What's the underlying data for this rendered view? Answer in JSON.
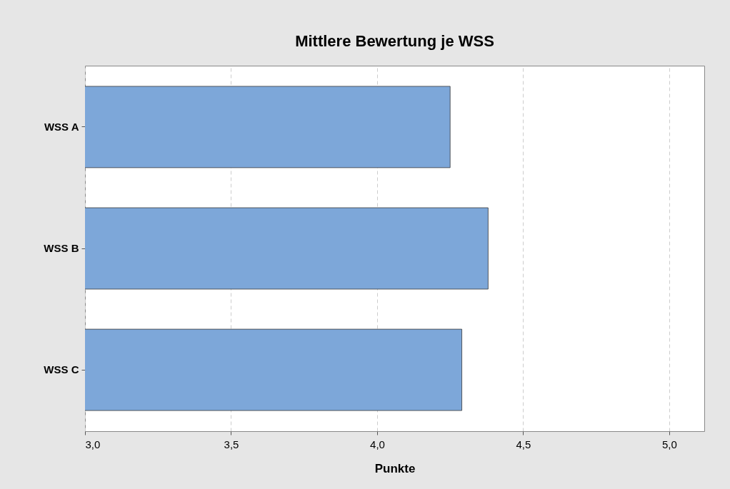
{
  "chart_data": {
    "type": "bar",
    "orientation": "horizontal",
    "title": "Mittlere Bewertung je WSS",
    "xlabel": "Punkte",
    "categories": [
      "WSS A",
      "WSS B",
      "WSS C"
    ],
    "values": [
      4.25,
      4.38,
      4.29
    ],
    "color": "#7da7d9",
    "xlim": [
      3,
      5.12
    ],
    "xticks": [
      {
        "value": 3,
        "label": "3,0"
      },
      {
        "value": 3.5,
        "label": "3,5"
      },
      {
        "value": 4,
        "label": "4,0"
      },
      {
        "value": 4.5,
        "label": "4,5"
      },
      {
        "value": 5,
        "label": "5,0"
      }
    ],
    "grid": "x"
  }
}
